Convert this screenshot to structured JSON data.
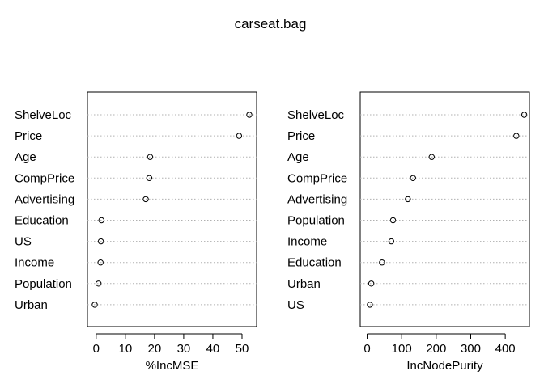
{
  "title": "carseat.bag",
  "chart_data": [
    {
      "type": "scatter",
      "xlabel": "%IncMSE",
      "ylabel": "",
      "xlim": [
        -3,
        55
      ],
      "xticks": [
        0,
        10,
        20,
        30,
        40,
        50
      ],
      "grid": "horizontal dotted",
      "categories": [
        "ShelveLoc",
        "Price",
        "Age",
        "CompPrice",
        "Advertising",
        "Education",
        "US",
        "Income",
        "Population",
        "Urban"
      ],
      "values": [
        52.5,
        49,
        18.5,
        18.2,
        17,
        1.8,
        1.6,
        1.5,
        0.8,
        -0.5
      ]
    },
    {
      "type": "scatter",
      "xlabel": "IncNodePurity",
      "ylabel": "",
      "xlim": [
        -20,
        470
      ],
      "xticks": [
        0,
        100,
        200,
        300,
        400
      ],
      "grid": "horizontal dotted",
      "categories": [
        "ShelveLoc",
        "Price",
        "Age",
        "CompPrice",
        "Advertising",
        "Population",
        "Income",
        "Education",
        "Urban",
        "US"
      ],
      "values": [
        455,
        432,
        187,
        133,
        118,
        75,
        70,
        43,
        12,
        8
      ]
    }
  ]
}
